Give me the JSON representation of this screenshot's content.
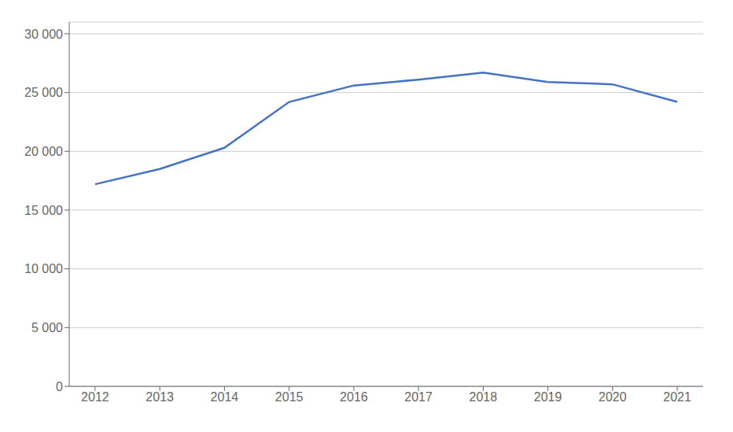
{
  "chart_data": {
    "type": "line",
    "x": [
      2012,
      2013,
      2014,
      2015,
      2016,
      2017,
      2018,
      2019,
      2020,
      2021
    ],
    "values": [
      17200,
      18500,
      20300,
      24200,
      25600,
      26100,
      26700,
      25900,
      25700,
      24200
    ],
    "color": "#4472C4",
    "xlim": [
      2011.6,
      2021.4
    ],
    "xticks": [
      2012,
      2013,
      2014,
      2015,
      2016,
      2017,
      2018,
      2019,
      2020,
      2021
    ],
    "ylim": [
      0,
      31000
    ],
    "yticks": [
      0,
      {
        "value": 5000,
        "label": "5 000"
      },
      {
        "value": 10000,
        "label": "10 000"
      },
      {
        "value": 15000,
        "label": "15 000"
      },
      {
        "value": 20000,
        "label": "20 000"
      },
      {
        "value": 25000,
        "label": "25 000"
      },
      {
        "value": 30000,
        "label": "30 000"
      }
    ],
    "grid": true
  }
}
